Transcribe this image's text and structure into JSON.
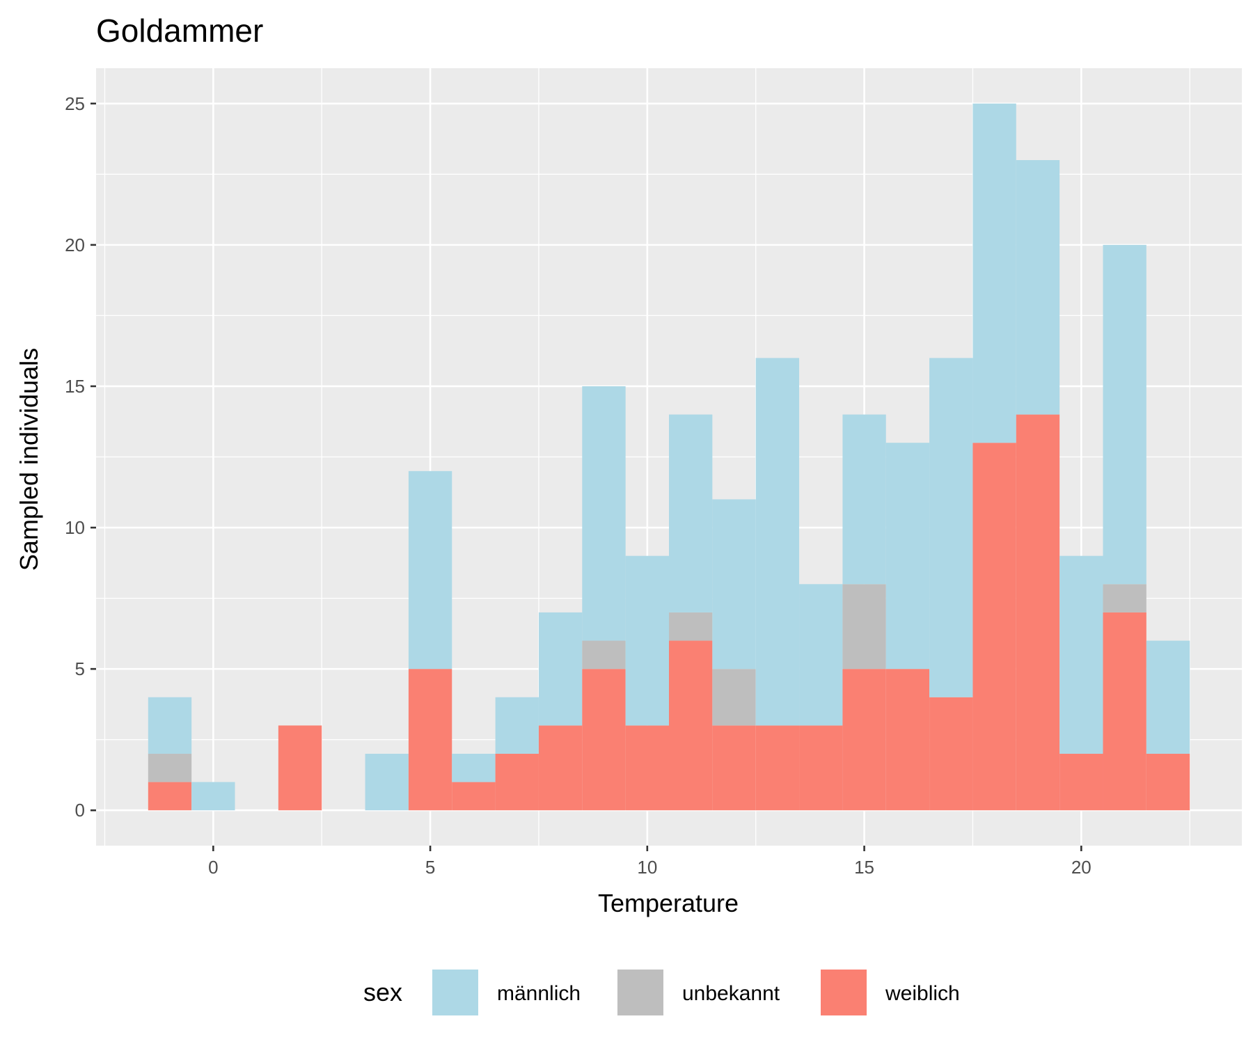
{
  "chart_data": {
    "type": "bar",
    "stacked": true,
    "title": "Goldammer",
    "xlabel": "Temperature",
    "ylabel": "Sampled individuals",
    "bin_width": 1,
    "bin_centers": [
      -1,
      0,
      1,
      2,
      3,
      4,
      5,
      6,
      7,
      8,
      9,
      10,
      11,
      12,
      13,
      14,
      15,
      16,
      17,
      18,
      19,
      20,
      21,
      22
    ],
    "series": [
      {
        "name": "weiblich",
        "color": "#FA8072",
        "values": [
          1,
          0,
          0,
          3,
          0,
          0,
          5,
          1,
          2,
          3,
          5,
          3,
          6,
          3,
          3,
          3,
          5,
          5,
          4,
          13,
          14,
          2,
          7,
          2
        ]
      },
      {
        "name": "unbekannt",
        "color": "#BEBEBE",
        "values": [
          1,
          0,
          0,
          0,
          0,
          0,
          0,
          0,
          0,
          0,
          1,
          0,
          1,
          2,
          0,
          0,
          3,
          0,
          0,
          0,
          0,
          0,
          1,
          0
        ]
      },
      {
        "name": "männlich",
        "color": "#ADD8E6",
        "values": [
          2,
          1,
          0,
          0,
          0,
          2,
          7,
          1,
          2,
          4,
          9,
          6,
          7,
          6,
          13,
          5,
          6,
          8,
          12,
          12,
          9,
          7,
          12,
          4
        ]
      }
    ],
    "xlim": [
      -2.7,
      23.7
    ],
    "ylim": [
      -1.25,
      26.25
    ],
    "x_ticks": [
      0,
      5,
      10,
      15,
      20
    ],
    "y_ticks": [
      0,
      5,
      10,
      15,
      20,
      25
    ],
    "grid": true,
    "legend": {
      "title": "sex",
      "position": "bottom",
      "order": [
        "männlich",
        "unbekannt",
        "weiblich"
      ]
    },
    "panel_background": "#EBEBEB",
    "grid_color": "#FFFFFF"
  }
}
